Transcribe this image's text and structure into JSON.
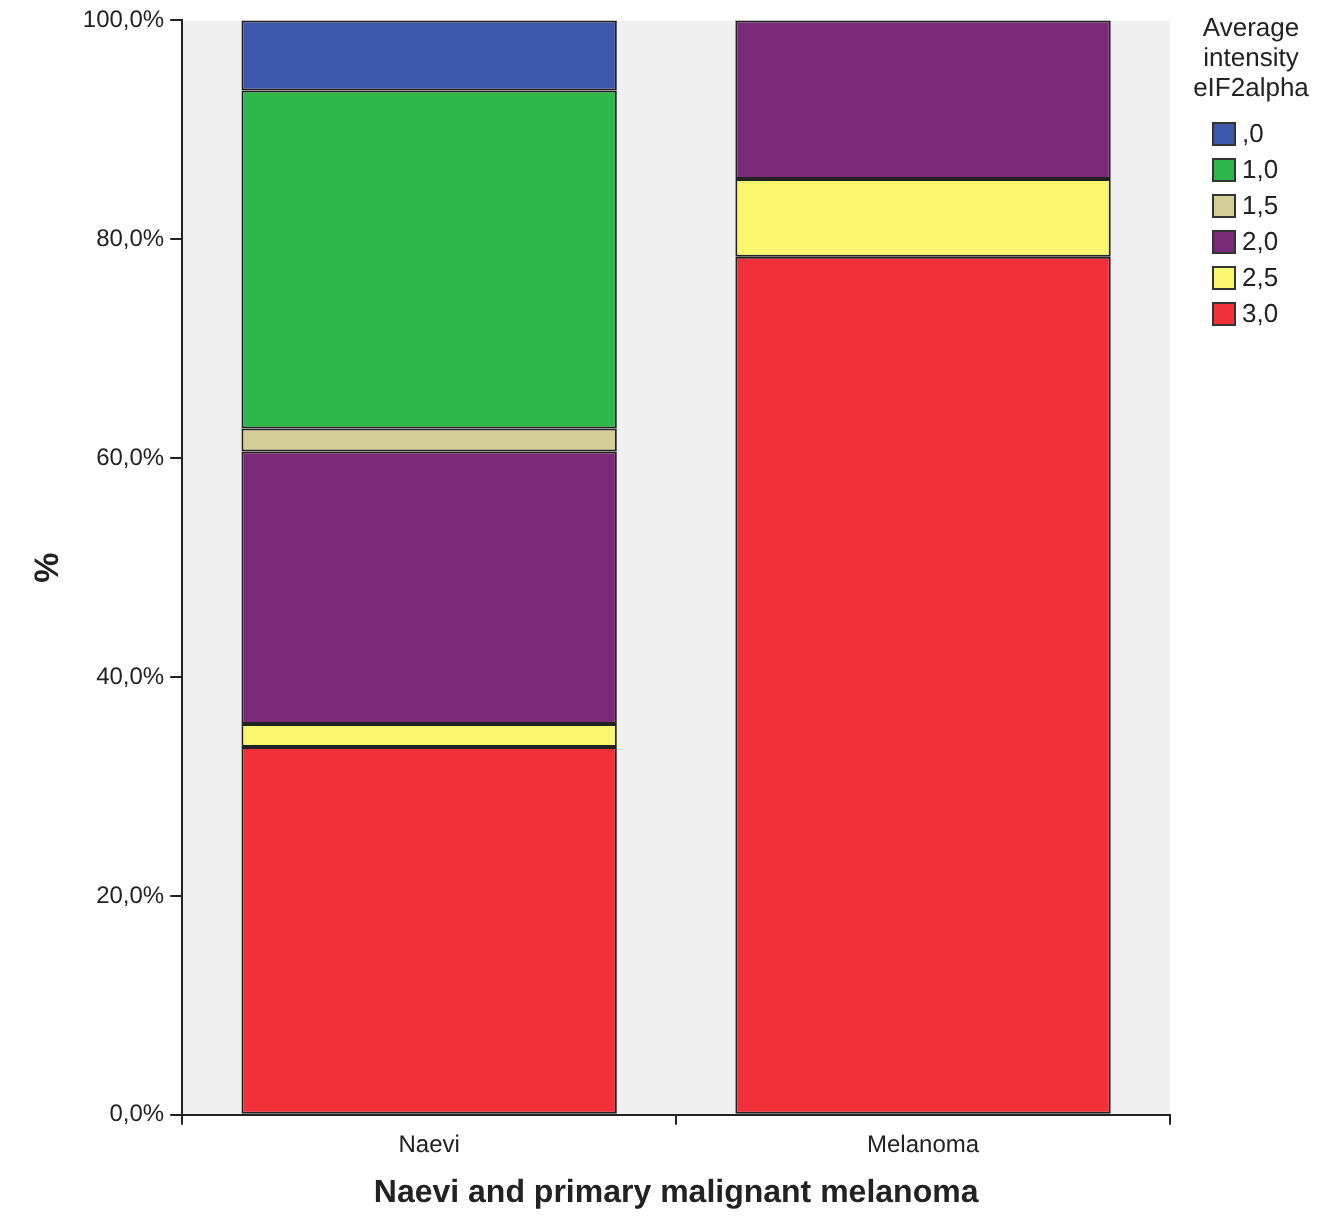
{
  "chart_data": {
    "type": "bar",
    "stacked": true,
    "xlabel": "Naevi and primary malignant melanoma",
    "ylabel": "%",
    "legend_title": "Average intensity eIF2alpha",
    "legend": "top right",
    "grid": false,
    "categories": [
      "Naevi",
      "Melanoma"
    ],
    "ylim": [
      0,
      100
    ],
    "yticks": [
      {
        "value": 0,
        "label": "0,0%"
      },
      {
        "value": 20,
        "label": "20,0%"
      },
      {
        "value": 40,
        "label": "40,0%"
      },
      {
        "value": 60,
        "label": "60,0%"
      },
      {
        "value": 80,
        "label": "80,0%"
      },
      {
        "value": 100,
        "label": "100,0%"
      }
    ],
    "series": [
      {
        "name": "3,0",
        "color": "#f13039",
        "values": [
          33.6,
          78.4
        ]
      },
      {
        "name": "2,5",
        "color": "#faf66e",
        "values": [
          2.1,
          7.1
        ]
      },
      {
        "name": "2,0",
        "color": "#7b2a7a",
        "values": [
          24.9,
          14.5
        ]
      },
      {
        "name": "1,5",
        "color": "#d3ce97",
        "values": [
          2.1,
          null
        ]
      },
      {
        "name": "1,0",
        "color": "#2eb84a",
        "values": [
          30.9,
          null
        ]
      },
      {
        "name": ",0",
        "color": "#3e58ac",
        "values": [
          6.4,
          null
        ]
      }
    ]
  }
}
